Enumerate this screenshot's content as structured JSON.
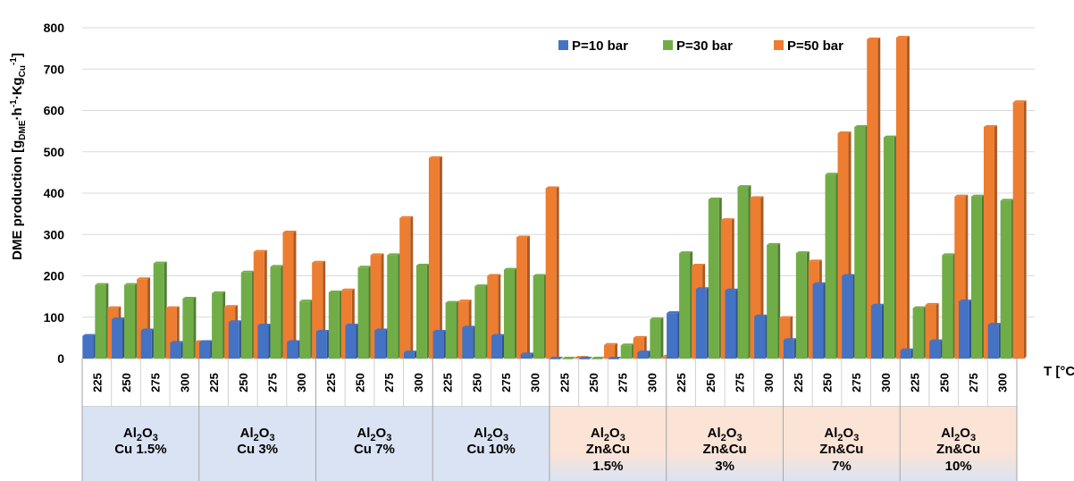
{
  "chart_data": {
    "type": "bar",
    "ylabel_main": "DME production [g",
    "ylabel_sub1": "DME",
    "ylabel_mid1": "·h",
    "ylabel_sup1": "-1",
    "ylabel_mid2": "·Kg",
    "ylabel_sub2": "Cu",
    "ylabel_sup2": "-1",
    "ylabel_end": "]",
    "xlabel": "T [°C]",
    "ylim": [
      0,
      800
    ],
    "yticks": [
      "0",
      "100",
      "200",
      "300",
      "400",
      "500",
      "600",
      "700",
      "800"
    ],
    "grid": true,
    "legend_position": "top-center",
    "temperatures": [
      "225",
      "250",
      "275",
      "300"
    ],
    "groups": [
      {
        "line1": "Al",
        "sub1": "2",
        "mid1": "O",
        "sub2": "3",
        "line2": "Cu 1.5%",
        "line3": "",
        "shade": "blue"
      },
      {
        "line1": "Al",
        "sub1": "2",
        "mid1": "O",
        "sub2": "3",
        "line2": "Cu 3%",
        "line3": "",
        "shade": "blue"
      },
      {
        "line1": "Al",
        "sub1": "2",
        "mid1": "O",
        "sub2": "3",
        "line2": "Cu 7%",
        "line3": "",
        "shade": "blue"
      },
      {
        "line1": "Al",
        "sub1": "2",
        "mid1": "O",
        "sub2": "3",
        "line2": "Cu 10%",
        "line3": "",
        "shade": "blue"
      },
      {
        "line1": "Al",
        "sub1": "2",
        "mid1": "O",
        "sub2": "3",
        "line2": "Zn&Cu",
        "line3": "1.5%",
        "shade": "orange"
      },
      {
        "line1": "Al",
        "sub1": "2",
        "mid1": "O",
        "sub2": "3",
        "line2": "Zn&Cu",
        "line3": "3%",
        "shade": "orange"
      },
      {
        "line1": "Al",
        "sub1": "2",
        "mid1": "O",
        "sub2": "3",
        "line2": "Zn&Cu",
        "line3": "7%",
        "shade": "orange"
      },
      {
        "line1": "Al",
        "sub1": "2",
        "mid1": "O",
        "sub2": "3",
        "line2": "Zn&Cu",
        "line3": "10%",
        "shade": "orange"
      }
    ],
    "series": [
      {
        "name": "P=10 bar",
        "color": "#4472c4",
        "values": [
          55,
          95,
          68,
          38,
          40,
          88,
          80,
          40,
          65,
          80,
          68,
          15,
          65,
          75,
          55,
          10,
          0,
          0,
          0,
          15,
          110,
          168,
          165,
          102,
          45,
          180,
          200,
          128,
          20,
          42,
          138,
          82
        ]
      },
      {
        "name": "P=30 bar",
        "color": "#70ad47",
        "values": [
          178,
          178,
          230,
          145,
          158,
          208,
          222,
          138,
          160,
          220,
          250,
          225,
          135,
          175,
          215,
          200,
          0,
          0,
          32,
          95,
          255,
          385,
          415,
          275,
          255,
          445,
          560,
          535,
          122,
          250,
          392,
          382
        ]
      },
      {
        "name": "P=50 bar",
        "color": "#ed7d31",
        "values": [
          122,
          192,
          122,
          40,
          125,
          258,
          305,
          232,
          165,
          250,
          340,
          485,
          138,
          200,
          293,
          412,
          2,
          33,
          50,
          5,
          225,
          335,
          388,
          98,
          235,
          545,
          772,
          776,
          130,
          392,
          560,
          620
        ]
      }
    ]
  }
}
